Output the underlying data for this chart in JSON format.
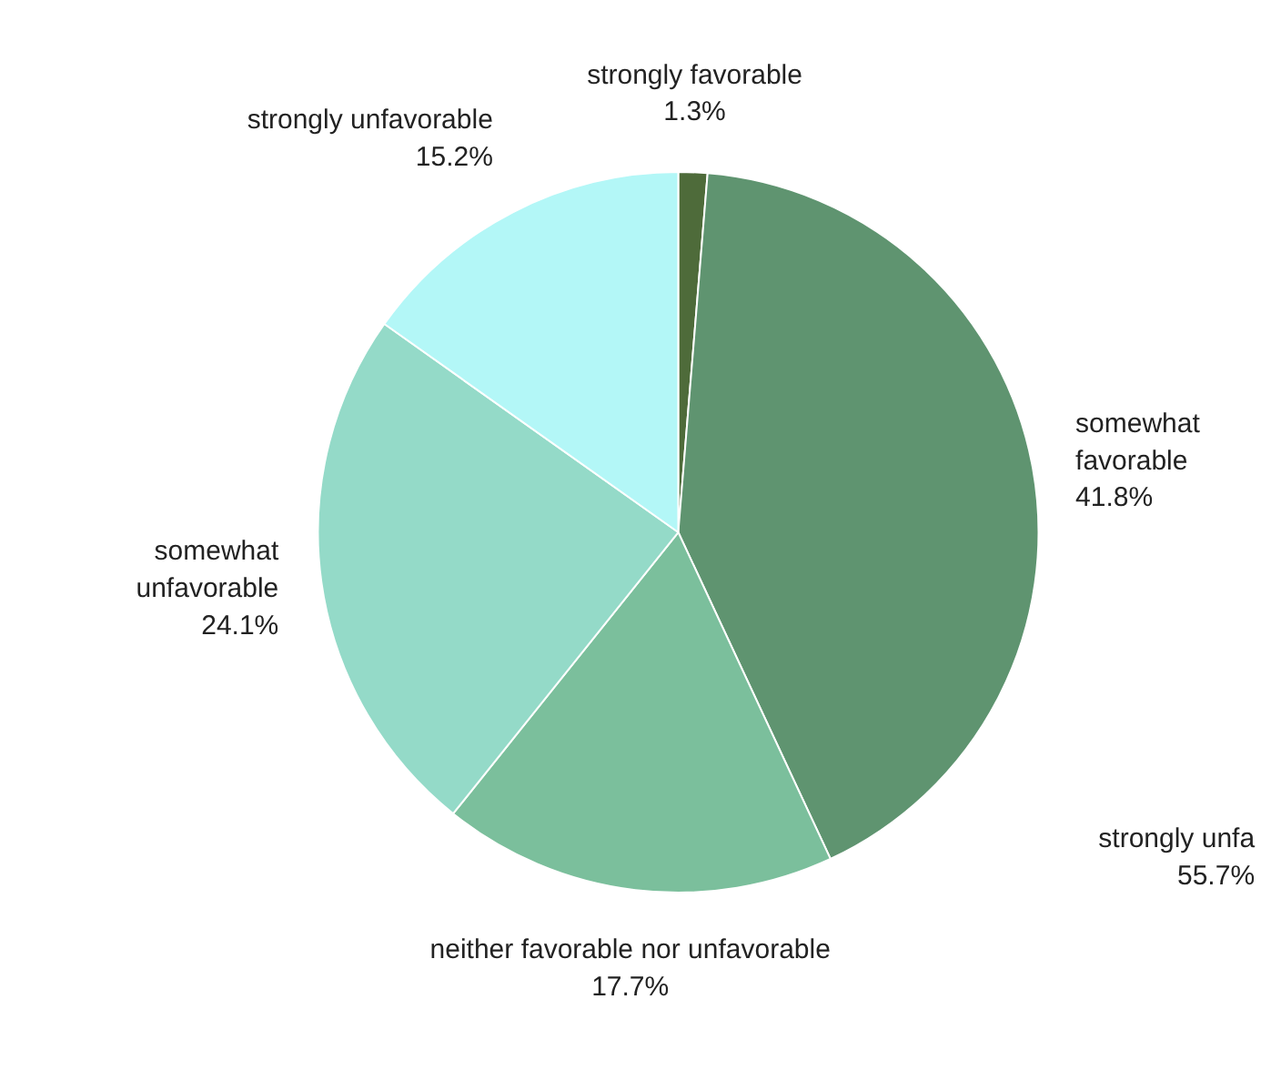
{
  "chart_data": {
    "type": "pie",
    "categories": [
      "strongly favorable",
      "somewhat favorable",
      "neither favorable nor unfavorable",
      "somewhat unfavorable",
      "strongly unfavorable"
    ],
    "values": [
      1.3,
      41.8,
      17.7,
      24.1,
      15.2
    ],
    "colors": [
      "#4e6b3a",
      "#5f9470",
      "#7bbf9c",
      "#94dac8",
      "#b3f7f7"
    ],
    "value_labels": [
      "1.3%",
      "41.8%",
      "17.7%",
      "24.1%",
      "15.2%"
    ],
    "annotations": [
      "strongly unfa\n55.7%"
    ]
  }
}
